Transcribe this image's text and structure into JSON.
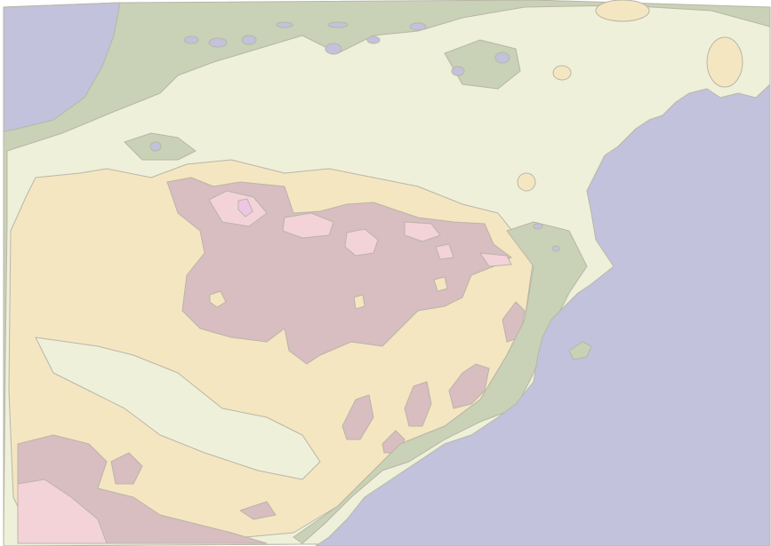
{
  "map": {
    "palette": {
      "background": "#ffffff",
      "sea": "#c2c2dd",
      "lowland": "#c9d1b7",
      "plain": "#eef0da",
      "upland": "#f5e6c2",
      "highland": "#d8bdc1",
      "peak": "#f3d3d8",
      "summit": "#eec6e5",
      "outline": "#b9b6a6"
    },
    "bands": [
      "sea",
      "lowland",
      "plain",
      "upland",
      "highland",
      "peak",
      "summit"
    ]
  }
}
